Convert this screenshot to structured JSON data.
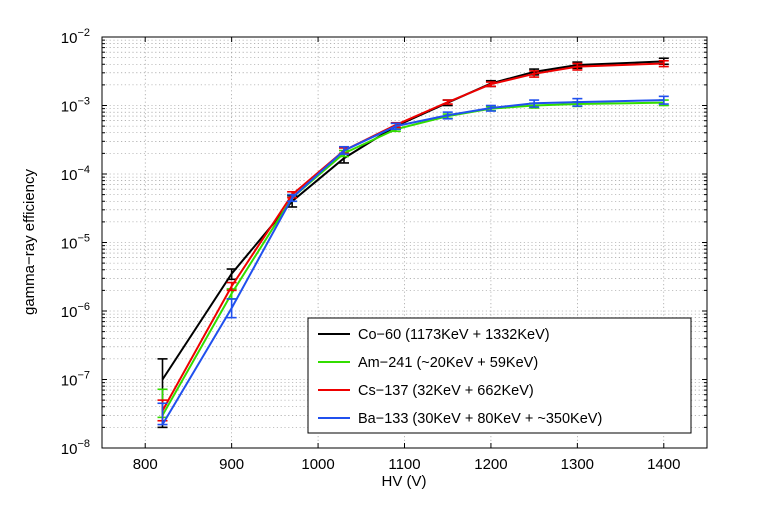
{
  "chart_data": {
    "type": "line",
    "xlabel": "HV (V)",
    "ylabel": "gamma−ray efficiency",
    "xlim": [
      750,
      1450
    ],
    "ylim_log10": [
      -8,
      -2
    ],
    "yscale": "log",
    "grid": true,
    "legend_position": "bottom-right",
    "x_ticks": [
      800,
      900,
      1000,
      1100,
      1200,
      1300,
      1400
    ],
    "x_tick_labels": [
      "800",
      "900",
      "1000",
      "1100",
      "1200",
      "1300",
      "1400"
    ],
    "y_ticks": [
      1e-08,
      1e-07,
      1e-06,
      1e-05,
      0.0001,
      0.001,
      0.01
    ],
    "y_tick_bases": [
      "10",
      "10",
      "10",
      "10",
      "10",
      "10",
      "10"
    ],
    "y_tick_exponents": [
      "−8",
      "−7",
      "−6",
      "−5",
      "−4",
      "−3",
      "−2"
    ],
    "series": [
      {
        "name": "Co−60 (1173KeV + 1332KeV)",
        "color": "#000000",
        "x": [
          820,
          900,
          970,
          1030,
          1090,
          1150,
          1200,
          1250,
          1300,
          1400
        ],
        "values": [
          1e-07,
          3.5e-06,
          4e-05,
          0.00017,
          0.0005,
          0.0011,
          0.0021,
          0.0031,
          0.0039,
          0.0044
        ],
        "err_lo": [
          2e-08,
          2.9e-06,
          3.3e-05,
          0.000145,
          0.00045,
          0.001,
          0.0019,
          0.0028,
          0.0035,
          0.004
        ],
        "err_hi": [
          2e-07,
          4.1e-06,
          4.8e-05,
          0.0002,
          0.00055,
          0.0012,
          0.0023,
          0.0034,
          0.0043,
          0.0049
        ]
      },
      {
        "name": "Am−241 (~20KeV + 59KeV)",
        "color": "#33dd00",
        "x": [
          820,
          900,
          970,
          1030,
          1090,
          1150,
          1200,
          1250,
          1300,
          1400
        ],
        "values": [
          3e-08,
          1.8e-06,
          4.5e-05,
          0.0002,
          0.00045,
          0.0007,
          0.0009,
          0.001,
          0.00105,
          0.0011
        ],
        "err_lo": [
          2.8e-08,
          1.5e-06,
          4e-05,
          0.00018,
          0.00042,
          0.00065,
          0.00084,
          0.00092,
          0.00097,
          0.001
        ],
        "err_hi": [
          7.2e-08,
          2.1e-06,
          5e-05,
          0.00022,
          0.00048,
          0.00075,
          0.00096,
          0.00108,
          0.00113,
          0.0012
        ]
      },
      {
        "name": "Cs−137 (32KeV + 662KeV)",
        "color": "#ee0000",
        "x": [
          820,
          900,
          970,
          1030,
          1090,
          1150,
          1200,
          1250,
          1300,
          1400
        ],
        "values": [
          3.5e-08,
          2.3e-06,
          5e-05,
          0.00022,
          0.00052,
          0.00112,
          0.00205,
          0.0029,
          0.0037,
          0.0041
        ],
        "err_lo": [
          2.5e-08,
          2e-06,
          4.5e-05,
          0.0002,
          0.00048,
          0.00105,
          0.0019,
          0.0026,
          0.0033,
          0.0037
        ],
        "err_hi": [
          5e-08,
          2.6e-06,
          5.5e-05,
          0.00024,
          0.00056,
          0.0012,
          0.0022,
          0.0032,
          0.0041,
          0.0045
        ]
      },
      {
        "name": "Ba−133 (30KeV + 80KeV + ~350KeV)",
        "color": "#2050ee",
        "x": [
          820,
          900,
          970,
          1030,
          1090,
          1150,
          1200,
          1250,
          1300,
          1400
        ],
        "values": [
          2.2e-08,
          1.1e-06,
          4.5e-05,
          0.00022,
          0.0005,
          0.00072,
          0.00092,
          0.00108,
          0.00112,
          0.0012
        ],
        "err_lo": [
          2.2e-08,
          8e-07,
          4e-05,
          0.000195,
          0.00045,
          0.00064,
          0.00083,
          0.00095,
          0.00098,
          0.00105
        ],
        "err_hi": [
          4.5e-08,
          1.5e-06,
          5e-05,
          0.00025,
          0.00055,
          0.0008,
          0.001,
          0.0012,
          0.00126,
          0.00136
        ]
      }
    ]
  }
}
